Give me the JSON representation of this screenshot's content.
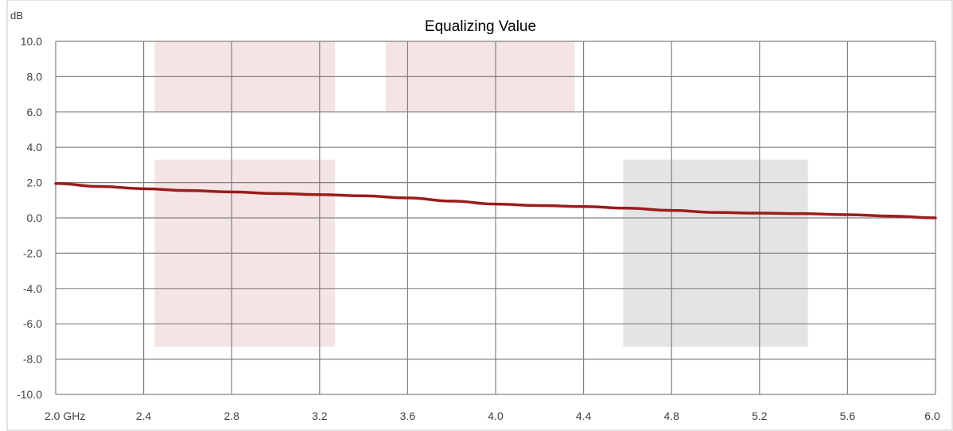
{
  "chart_data": {
    "type": "line",
    "title": "Equalizing Value",
    "ylabel": "dB",
    "xlabel": "",
    "xlim": [
      2.0,
      6.0
    ],
    "ylim": [
      -10.0,
      10.0
    ],
    "grid": true,
    "x_ticks": [
      {
        "value": 2.0,
        "label": "2.0 GHz"
      },
      {
        "value": 2.4,
        "label": "2.4"
      },
      {
        "value": 2.8,
        "label": "2.8"
      },
      {
        "value": 3.2,
        "label": "3.2"
      },
      {
        "value": 3.6,
        "label": "3.6"
      },
      {
        "value": 4.0,
        "label": "4.0"
      },
      {
        "value": 4.4,
        "label": "4.4"
      },
      {
        "value": 4.8,
        "label": "4.8"
      },
      {
        "value": 5.2,
        "label": "5.2"
      },
      {
        "value": 5.6,
        "label": "5.6"
      },
      {
        "value": 6.0,
        "label": "6.0"
      }
    ],
    "y_ticks": [
      {
        "value": 10,
        "label": "10.0"
      },
      {
        "value": 8,
        "label": "8.0"
      },
      {
        "value": 6,
        "label": "6.0"
      },
      {
        "value": 4,
        "label": "4.0"
      },
      {
        "value": 2,
        "label": "2.0"
      },
      {
        "value": 0,
        "label": "0.0"
      },
      {
        "value": -2,
        "label": "-2.0"
      },
      {
        "value": -4,
        "label": "-4.0"
      },
      {
        "value": -6,
        "label": "-6.0"
      },
      {
        "value": -8,
        "label": "-8.0"
      },
      {
        "value": -10,
        "label": "-10.0"
      }
    ],
    "regions": [
      {
        "x0": 2.45,
        "x1": 3.27,
        "y0": 6.0,
        "y1": 10.0,
        "color": "#f5e4e4"
      },
      {
        "x0": 3.5,
        "x1": 4.36,
        "y0": 6.0,
        "y1": 10.0,
        "color": "#f5e4e4"
      },
      {
        "x0": 2.45,
        "x1": 3.27,
        "y0": -7.3,
        "y1": 3.3,
        "color": "#f5e4e4"
      },
      {
        "x0": 4.58,
        "x1": 5.42,
        "y0": -7.3,
        "y1": 3.3,
        "color": "#e4e4e4"
      }
    ],
    "series": [
      {
        "color": "#9b1c1c",
        "points": [
          [
            2.0,
            1.95
          ],
          [
            2.2,
            1.78
          ],
          [
            2.4,
            1.65
          ],
          [
            2.6,
            1.55
          ],
          [
            2.8,
            1.47
          ],
          [
            3.0,
            1.38
          ],
          [
            3.2,
            1.32
          ],
          [
            3.4,
            1.25
          ],
          [
            3.6,
            1.13
          ],
          [
            3.8,
            0.95
          ],
          [
            4.0,
            0.78
          ],
          [
            4.2,
            0.7
          ],
          [
            4.4,
            0.64
          ],
          [
            4.6,
            0.55
          ],
          [
            4.8,
            0.42
          ],
          [
            5.0,
            0.31
          ],
          [
            5.2,
            0.27
          ],
          [
            5.4,
            0.24
          ],
          [
            5.6,
            0.18
          ],
          [
            5.8,
            0.1
          ],
          [
            6.0,
            0.0
          ]
        ]
      }
    ]
  }
}
